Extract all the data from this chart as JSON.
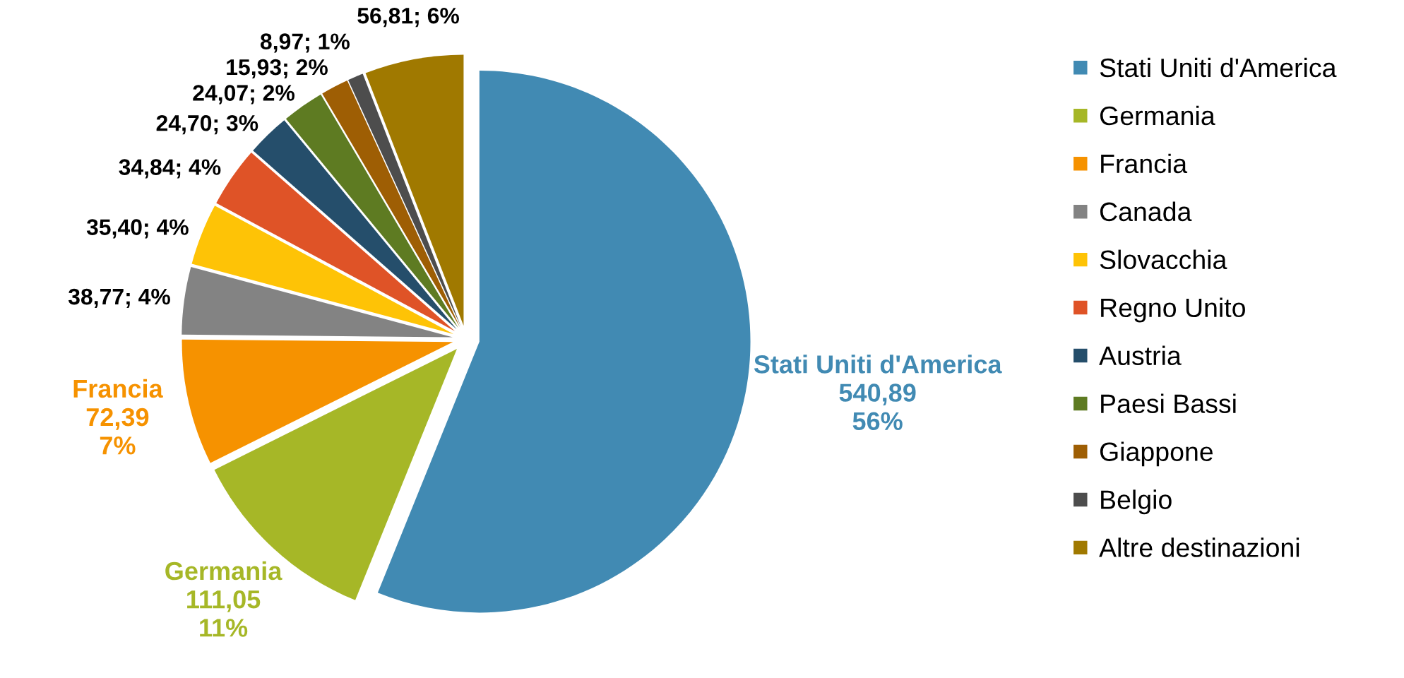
{
  "chart_data": {
    "type": "pie",
    "categories": [
      "Stati Uniti d'America",
      "Germania",
      "Francia",
      "Canada",
      "Slovacchia",
      "Regno Unito",
      "Austria",
      "Paesi Bassi",
      "Giappone",
      "Belgio",
      "Altre destinazioni"
    ],
    "values": [
      540.89,
      111.05,
      72.39,
      38.77,
      35.4,
      34.84,
      24.7,
      24.07,
      15.93,
      8.97,
      56.81
    ],
    "colors": [
      "#418ab3",
      "#a6b727",
      "#f69200",
      "#838383",
      "#fec306",
      "#df5327",
      "#254e6b",
      "#5e7b22",
      "#9e5e04",
      "#4d4d4d",
      "#a07900"
    ],
    "value_labels": [
      "Stati Uniti d'America\n540,89\n56%",
      "Germania\n111,05\n11%",
      "Francia\n72,39\n7%",
      "38,77; 4%",
      "35,40; 4%",
      "34,84; 4%",
      "24,70; 3%",
      "24,07; 2%",
      "15,93; 2%",
      "8,97; 1%",
      "56,81; 6%"
    ],
    "legend": "right"
  }
}
